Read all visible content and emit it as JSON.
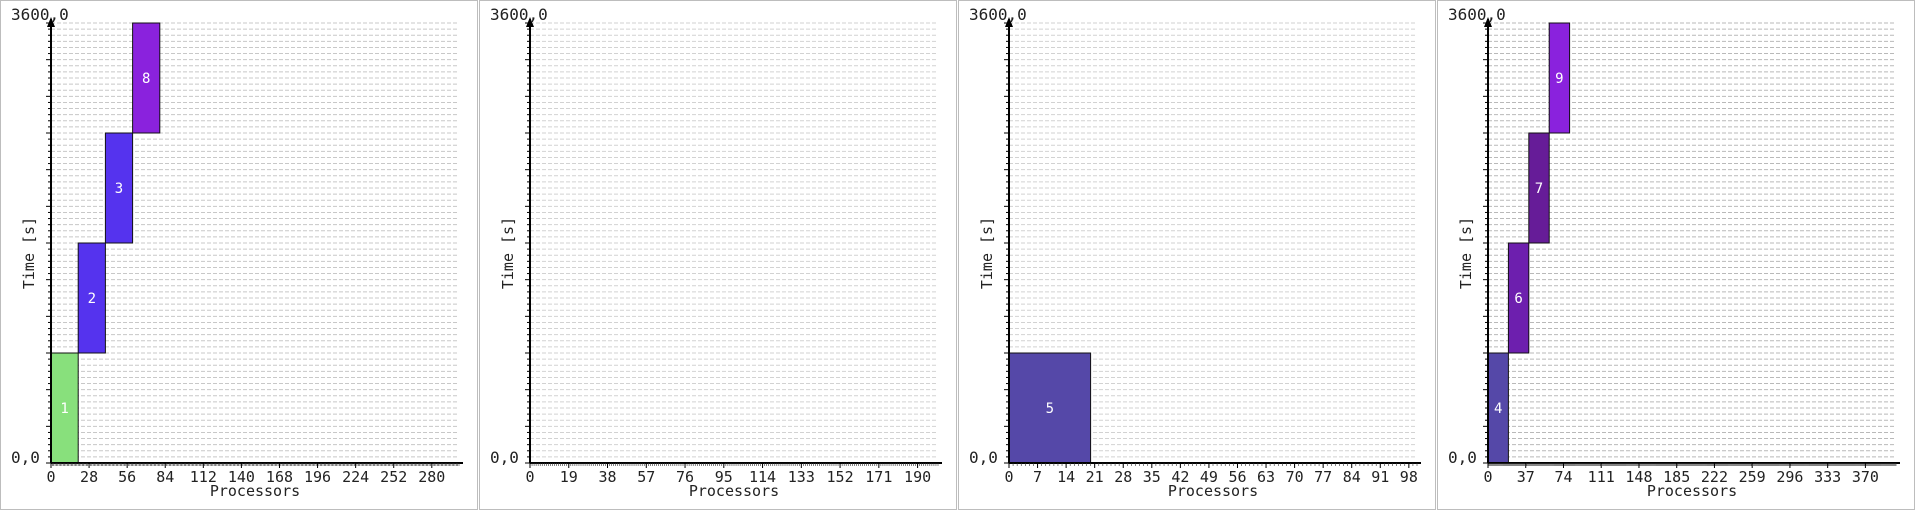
{
  "chart_data": [
    {
      "type": "gantt",
      "panel": 0,
      "ylabel": "Time [s]",
      "xlabel": "Processors",
      "ylim": [
        0,
        3600
      ],
      "top_label": "3600,0",
      "origin_label": "0,0",
      "xlim": [
        0,
        300
      ],
      "xticks": [
        "0",
        "28",
        "56",
        "84",
        "112",
        "140",
        "168",
        "196",
        "224",
        "252",
        "280"
      ],
      "xtick_step": 28,
      "grid_rows": 72,
      "grid_cols": 300,
      "grid_color": "#c8c8c8",
      "jobs": [
        {
          "label": "1",
          "x0": 0,
          "x1": 20,
          "t0": 0,
          "t1": 900,
          "color": "#88e07c"
        },
        {
          "label": "2",
          "x0": 20,
          "x1": 40,
          "t0": 900,
          "t1": 1800,
          "color": "#5533ee"
        },
        {
          "label": "3",
          "x0": 40,
          "x1": 60,
          "t0": 1800,
          "t1": 2700,
          "color": "#5533ee"
        },
        {
          "label": "8",
          "x0": 60,
          "x1": 80,
          "t0": 2700,
          "t1": 3600,
          "color": "#8a22dd"
        }
      ]
    },
    {
      "type": "gantt",
      "panel": 1,
      "ylabel": "Time [s]",
      "xlabel": "Processors",
      "ylim": [
        0,
        3600
      ],
      "top_label": "3600,0",
      "origin_label": "0,0",
      "xlim": [
        0,
        200
      ],
      "xticks": [
        "0",
        "19",
        "38",
        "57",
        "76",
        "95",
        "114",
        "133",
        "152",
        "171",
        "190"
      ],
      "xtick_step": 19,
      "grid_rows": 72,
      "grid_cols": 200,
      "grid_color": "#d2d2d2",
      "jobs": []
    },
    {
      "type": "gantt",
      "panel": 2,
      "ylabel": "Time [s]",
      "xlabel": "Processors",
      "ylim": [
        0,
        3600
      ],
      "top_label": "3600,0",
      "origin_label": "0,0",
      "xlim": [
        0,
        100
      ],
      "xticks": [
        "0",
        "7",
        "14",
        "21",
        "28",
        "35",
        "42",
        "49",
        "56",
        "63",
        "70",
        "77",
        "84",
        "91",
        "98"
      ],
      "xtick_step": 7,
      "grid_rows": 72,
      "grid_cols": 100,
      "grid_color": "#d2d2d2",
      "jobs": [
        {
          "label": "5",
          "x0": 0,
          "x1": 20,
          "t0": 0,
          "t1": 900,
          "color": "#5548a8"
        }
      ]
    },
    {
      "type": "gantt",
      "panel": 3,
      "ylabel": "Time [s]",
      "xlabel": "Processors",
      "ylim": [
        0,
        3600
      ],
      "top_label": "3600,0",
      "origin_label": "0,0",
      "xlim": [
        0,
        400
      ],
      "xticks": [
        "0",
        "37",
        "74",
        "111",
        "148",
        "185",
        "222",
        "259",
        "296",
        "333",
        "370"
      ],
      "xtick_step": 37,
      "grid_rows": 72,
      "grid_cols": 400,
      "grid_color": "#b9b9b9",
      "jobs": [
        {
          "label": "4",
          "x0": 0,
          "x1": 20,
          "t0": 0,
          "t1": 900,
          "color": "#5548a8"
        },
        {
          "label": "6",
          "x0": 20,
          "x1": 40,
          "t0": 900,
          "t1": 1800,
          "color": "#6d1fae"
        },
        {
          "label": "7",
          "x0": 40,
          "x1": 60,
          "t0": 1800,
          "t1": 2700,
          "color": "#661c98"
        },
        {
          "label": "9",
          "x0": 60,
          "x1": 80,
          "t0": 2700,
          "t1": 3600,
          "color": "#8a22dd"
        }
      ]
    }
  ]
}
